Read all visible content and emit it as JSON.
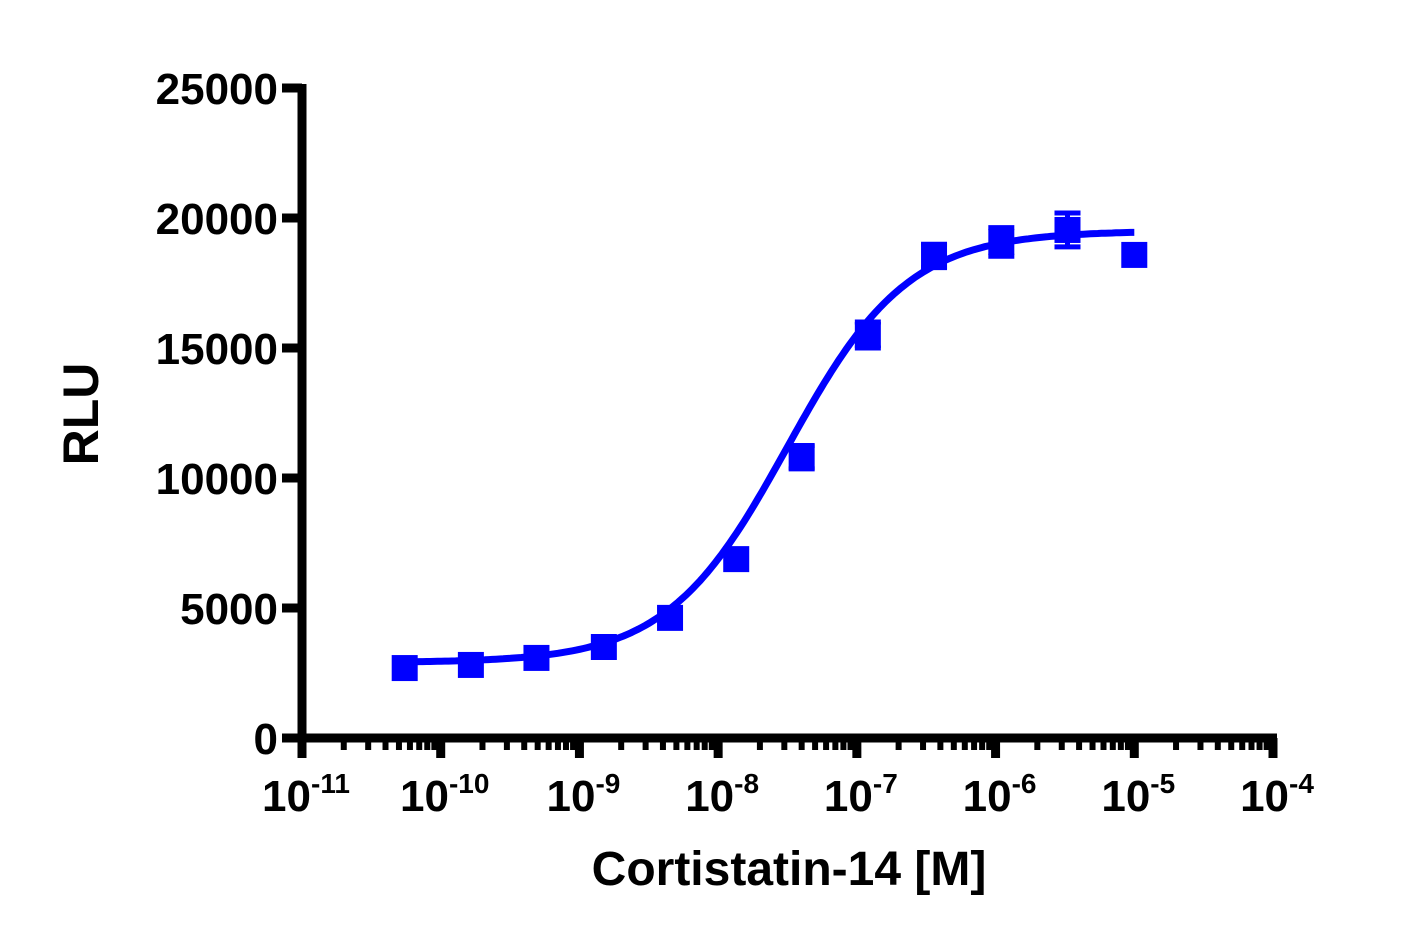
{
  "chart_data": {
    "type": "scatter",
    "title": "",
    "xlabel": "Cortistatin-14 [M]",
    "ylabel": "RLU",
    "xscale": "log",
    "xlim": [
      1e-11,
      0.0001
    ],
    "ylim": [
      0,
      25000
    ],
    "grid": false,
    "legend": null,
    "x_ticks": [
      {
        "base": "10",
        "exp": "-11"
      },
      {
        "base": "10",
        "exp": "-10"
      },
      {
        "base": "10",
        "exp": "-9"
      },
      {
        "base": "10",
        "exp": "-8"
      },
      {
        "base": "10",
        "exp": "-7"
      },
      {
        "base": "10",
        "exp": "-6"
      },
      {
        "base": "10",
        "exp": "-5"
      },
      {
        "base": "10",
        "exp": "-4"
      }
    ],
    "y_ticks": [
      "0",
      "5000",
      "10000",
      "15000",
      "20000",
      "25000"
    ],
    "series": [
      {
        "name": "Cortistatin-14",
        "color": "#0000FF",
        "marker": "square",
        "x": [
          5.5e-11,
          1.65e-10,
          4.9e-10,
          1.5e-09,
          4.5e-09,
          1.35e-08,
          4e-08,
          1.2e-07,
          3.6e-07,
          1.1e-06,
          3.3e-06,
          1e-05
        ],
        "y": [
          2690,
          2810,
          3080,
          3500,
          4620,
          6880,
          10800,
          15500,
          18540,
          19080,
          19540,
          18580
        ],
        "error": [
          100,
          100,
          150,
          150,
          150,
          200,
          450,
          500,
          450,
          550,
          650,
          100
        ]
      }
    ],
    "fit": {
      "type": "four-parameter logistic",
      "bottom": 2900,
      "top": 19500,
      "log_ec50": -7.5,
      "hill_slope": 1.0
    }
  }
}
